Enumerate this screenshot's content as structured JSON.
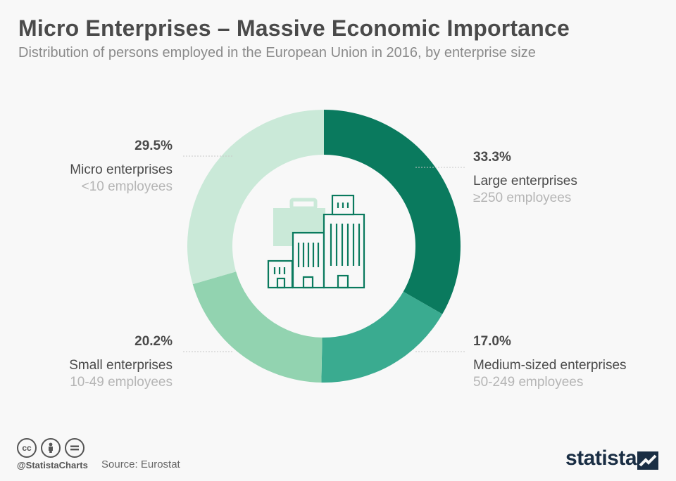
{
  "title": "Micro Enterprises – Massive Economic Importance",
  "subtitle": "Distribution of persons employed in the European Union in 2016, by enterprise size",
  "chart_data": {
    "type": "pie",
    "donut": true,
    "title": "Micro Enterprises – Massive Economic Importance",
    "subtitle": "Distribution of persons employed in the European Union in 2016, by enterprise size",
    "slices": [
      {
        "label": "Large enterprises",
        "sublabel": "≥250 employees",
        "value": 33.3,
        "display": "33.3%",
        "color": "#0a7a5e"
      },
      {
        "label": "Medium-sized enterprises",
        "sublabel": "50-249 employees",
        "value": 17.0,
        "display": "17.0%",
        "color": "#3aab90"
      },
      {
        "label": "Small enterprises",
        "sublabel": "10-49 employees",
        "value": 20.2,
        "display": "20.2%",
        "color": "#92d3b0"
      },
      {
        "label": "Micro enterprises",
        "sublabel": "<10 employees",
        "value": 29.5,
        "display": "29.5%",
        "color": "#cae9d8"
      }
    ]
  },
  "footer": {
    "handle": "@StatistaCharts",
    "source": "Source: Eurostat",
    "brand": "statista",
    "cc_icons": [
      "cc",
      "by",
      "="
    ]
  },
  "colors": {
    "center_icon": "#0a7a5e",
    "center_icon_light": "#cae9d8",
    "brand": "#1a2e44"
  }
}
